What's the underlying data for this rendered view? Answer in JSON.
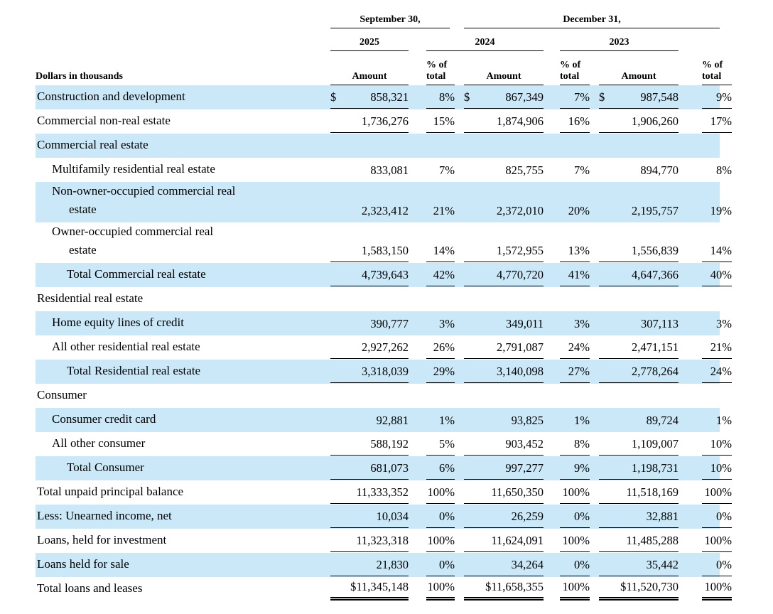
{
  "colors": {
    "highlight_row_bg": "#cae8f8",
    "text": "#000000",
    "rule": "#000000"
  },
  "table": {
    "currency_symbol": "$",
    "header": {
      "corner": "Dollars in thousands",
      "date_group_1": "September 30,",
      "date_group_2": "December 31,",
      "years": [
        "2025",
        "2024",
        "2023"
      ],
      "amount_label": "Amount",
      "pct_label_line1": "% of",
      "pct_label_line2": "total"
    },
    "rows": [
      {
        "label": "Construction and development",
        "indent": 0,
        "highlight": true,
        "dollar": true,
        "rule": true,
        "double_rule": false,
        "values": [
          "858,321",
          "8%",
          "867,349",
          "7%",
          "987,548",
          "9%"
        ]
      },
      {
        "label": "Commercial non-real estate",
        "indent": 0,
        "highlight": false,
        "dollar": false,
        "rule": true,
        "double_rule": false,
        "values": [
          "1,736,276",
          "15%",
          "1,874,906",
          "16%",
          "1,906,260",
          "17%"
        ]
      },
      {
        "label": "Commercial real estate",
        "indent": 0,
        "highlight": true,
        "dollar": false,
        "rule": false,
        "double_rule": false,
        "values": [
          "",
          "",
          "",
          "",
          "",
          ""
        ]
      },
      {
        "label": "Multifamily residential real estate",
        "indent": 1,
        "highlight": false,
        "dollar": false,
        "rule": false,
        "double_rule": false,
        "values": [
          "833,081",
          "7%",
          "825,755",
          "7%",
          "894,770",
          "8%"
        ]
      },
      {
        "label": "Non-owner-occupied commercial real",
        "label2": "estate",
        "indent": 1,
        "highlight": true,
        "dollar": false,
        "rule": false,
        "double_rule": false,
        "values": [
          "2,323,412",
          "21%",
          "2,372,010",
          "20%",
          "2,195,757",
          "19%"
        ]
      },
      {
        "label": "Owner-occupied commercial real",
        "label2": "estate",
        "indent": 1,
        "highlight": false,
        "dollar": false,
        "rule": true,
        "double_rule": false,
        "values": [
          "1,583,150",
          "14%",
          "1,572,955",
          "13%",
          "1,556,839",
          "14%"
        ]
      },
      {
        "label": "Total Commercial real estate",
        "indent": 2,
        "highlight": true,
        "dollar": false,
        "rule": true,
        "double_rule": false,
        "values": [
          "4,739,643",
          "42%",
          "4,770,720",
          "41%",
          "4,647,366",
          "40%"
        ]
      },
      {
        "label": "Residential real estate",
        "indent": 0,
        "highlight": false,
        "dollar": false,
        "rule": false,
        "double_rule": false,
        "values": [
          "",
          "",
          "",
          "",
          "",
          ""
        ]
      },
      {
        "label": "Home equity lines of credit",
        "indent": 1,
        "highlight": true,
        "dollar": false,
        "rule": false,
        "double_rule": false,
        "values": [
          "390,777",
          "3%",
          "349,011",
          "3%",
          "307,113",
          "3%"
        ]
      },
      {
        "label": "All other residential real estate",
        "indent": 1,
        "highlight": false,
        "dollar": false,
        "rule": true,
        "double_rule": false,
        "values": [
          "2,927,262",
          "26%",
          "2,791,087",
          "24%",
          "2,471,151",
          "21%"
        ]
      },
      {
        "label": "Total Residential real estate",
        "indent": 2,
        "highlight": true,
        "dollar": false,
        "rule": true,
        "double_rule": false,
        "values": [
          "3,318,039",
          "29%",
          "3,140,098",
          "27%",
          "2,778,264",
          "24%"
        ]
      },
      {
        "label": "Consumer",
        "indent": 0,
        "highlight": false,
        "dollar": false,
        "rule": false,
        "double_rule": false,
        "values": [
          "",
          "",
          "",
          "",
          "",
          ""
        ]
      },
      {
        "label": "Consumer credit card",
        "indent": 1,
        "highlight": true,
        "dollar": false,
        "rule": false,
        "double_rule": false,
        "values": [
          "92,881",
          "1%",
          "93,825",
          "1%",
          "89,724",
          "1%"
        ]
      },
      {
        "label": "All other consumer",
        "indent": 1,
        "highlight": false,
        "dollar": false,
        "rule": true,
        "double_rule": false,
        "values": [
          "588,192",
          "5%",
          "903,452",
          "8%",
          "1,109,007",
          "10%"
        ]
      },
      {
        "label": "Total Consumer",
        "indent": 2,
        "highlight": true,
        "dollar": false,
        "rule": true,
        "double_rule": false,
        "values": [
          "681,073",
          "6%",
          "997,277",
          "9%",
          "1,198,731",
          "10%"
        ]
      },
      {
        "label": "Total unpaid principal balance",
        "indent": 0,
        "highlight": false,
        "dollar": false,
        "rule": true,
        "double_rule": false,
        "values": [
          "11,333,352",
          "100%",
          "11,650,350",
          "100%",
          "11,518,169",
          "100%"
        ]
      },
      {
        "label": "Less: Unearned income, net",
        "indent": 0,
        "highlight": true,
        "dollar": false,
        "rule": true,
        "double_rule": false,
        "values": [
          "10,034",
          "0%",
          "26,259",
          "0%",
          "32,881",
          "0%"
        ]
      },
      {
        "label": "Loans, held for investment",
        "indent": 0,
        "highlight": false,
        "dollar": false,
        "rule": true,
        "double_rule": false,
        "values": [
          "11,323,318",
          "100%",
          "11,624,091",
          "100%",
          "11,485,288",
          "100%"
        ]
      },
      {
        "label": "Loans held for sale",
        "indent": 0,
        "highlight": true,
        "dollar": false,
        "rule": true,
        "double_rule": false,
        "values": [
          "21,830",
          "0%",
          "34,264",
          "0%",
          "35,442",
          "0%"
        ]
      },
      {
        "label": "Total loans and leases",
        "indent": 0,
        "highlight": false,
        "dollar": false,
        "rule": true,
        "double_rule": true,
        "values": [
          "$11,345,148",
          "100%",
          "$11,658,355",
          "100%",
          "$11,520,730",
          "100%"
        ]
      }
    ]
  }
}
